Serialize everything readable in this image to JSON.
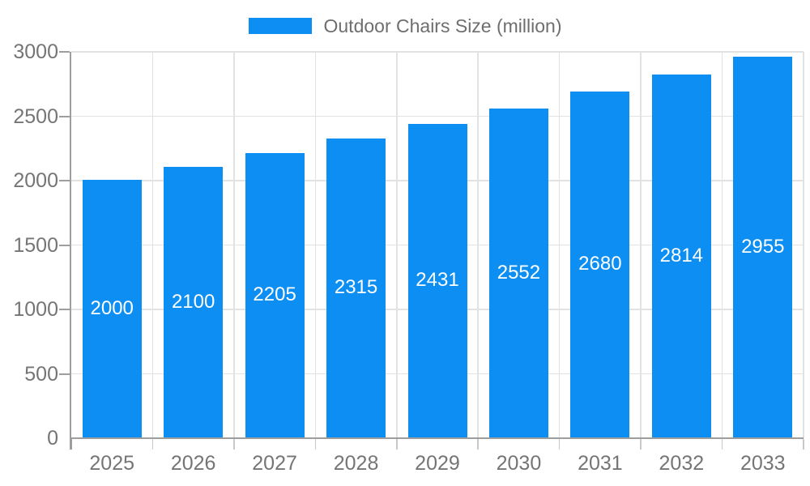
{
  "legend": {
    "label": "Outdoor Chairs Size (million)",
    "position": "top"
  },
  "chart_data": {
    "type": "bar",
    "title": "",
    "categories": [
      "2025",
      "2026",
      "2027",
      "2028",
      "2029",
      "2030",
      "2031",
      "2032",
      "2033"
    ],
    "series": [
      {
        "name": "Outdoor Chairs Size (million)",
        "values": [
          2000,
          2100,
          2205,
          2315,
          2431,
          2552,
          2680,
          2814,
          2955
        ]
      }
    ],
    "bar_value_labels": [
      "2000",
      "2100",
      "2205",
      "2315",
      "2431",
      "2552",
      "2680",
      "2814",
      "2955"
    ],
    "xlabel": "",
    "ylabel": "",
    "ylim": [
      0,
      3000
    ],
    "ytick_step": 500,
    "yticks": [
      0,
      500,
      1000,
      1500,
      2000,
      2500,
      3000
    ],
    "grid": true,
    "legend_position": "top"
  },
  "colors": {
    "bar": "#0c8ef2",
    "grid": "#e2e2e2",
    "axis": "#9e9e9e",
    "tick": "#c9c9c9",
    "tick_label_text": "#757575",
    "bar_label_text": "#ffffff",
    "legend_text": "#6e6e6e",
    "background": "#ffffff"
  },
  "icons": {
    "legend_swatch": "blue-rect-swatch"
  }
}
